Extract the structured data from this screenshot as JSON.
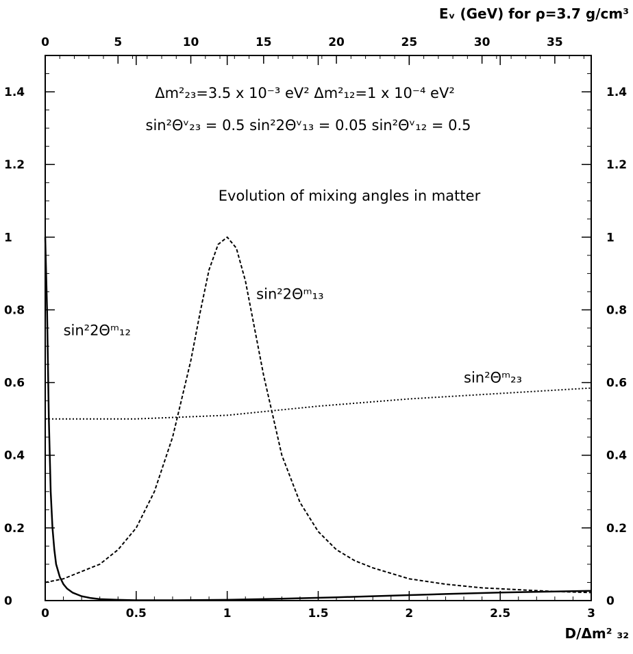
{
  "chart_data": {
    "type": "line",
    "title": "Evolution of mixing angles in matter",
    "parameters": {
      "line1": "Δm²₂₃=3.5 x 10⁻³ eV² Δm²₁₂=1 x 10⁻⁴ eV²",
      "line2": "sin²Θᵛ₂₃ = 0.5   sin²2Θᵛ₁₃ = 0.05  sin²Θᵛ₁₂ = 0.5"
    },
    "xlabel": "D/Δm² ₃₂",
    "top_xlabel": "Eᵥ (GeV) for ρ=3.7 g/cm³",
    "xlim": [
      0,
      3
    ],
    "ylim": [
      0,
      1.5
    ],
    "top_xlim": [
      0,
      37.5
    ],
    "x_ticks": [
      "0",
      "0.5",
      "1",
      "1.5",
      "2",
      "2.5",
      "3"
    ],
    "x_tick_values": [
      0,
      0.5,
      1,
      1.5,
      2,
      2.5,
      3
    ],
    "top_ticks": [
      "0",
      "5",
      "10",
      "15",
      "20",
      "25",
      "30",
      "35"
    ],
    "top_tick_values": [
      0,
      5,
      10,
      15,
      20,
      25,
      30,
      35
    ],
    "y_ticks": [
      "0",
      "0.2",
      "0.4",
      "0.6",
      "0.8",
      "1",
      "1.2",
      "1.4"
    ],
    "y_tick_values": [
      0,
      0.2,
      0.4,
      0.6,
      0.8,
      1,
      1.2,
      1.4
    ],
    "grid": false,
    "series": [
      {
        "name": "sin²2Θᵐ₁₂",
        "style": "solid",
        "color": "#000000",
        "x": [
          0,
          0.01,
          0.02,
          0.03,
          0.04,
          0.05,
          0.06,
          0.08,
          0.1,
          0.12,
          0.15,
          0.2,
          0.25,
          0.3,
          0.4,
          0.5,
          0.7,
          1.0,
          1.3,
          1.6,
          1.8,
          2.0,
          2.2,
          2.5,
          2.8,
          3.0
        ],
        "y": [
          1.0,
          0.8,
          0.5,
          0.3,
          0.2,
          0.14,
          0.1,
          0.065,
          0.045,
          0.033,
          0.022,
          0.012,
          0.007,
          0.004,
          0.002,
          0.001,
          0.001,
          0.002,
          0.005,
          0.009,
          0.012,
          0.015,
          0.018,
          0.022,
          0.025,
          0.027
        ]
      },
      {
        "name": "sin²2Θᵐ₁₃",
        "style": "dashed",
        "color": "#000000",
        "x": [
          0,
          0.1,
          0.2,
          0.3,
          0.4,
          0.5,
          0.6,
          0.7,
          0.8,
          0.85,
          0.9,
          0.95,
          1.0,
          1.05,
          1.1,
          1.15,
          1.2,
          1.3,
          1.4,
          1.5,
          1.6,
          1.7,
          1.8,
          2.0,
          2.2,
          2.4,
          2.6,
          2.8,
          3.0
        ],
        "y": [
          0.05,
          0.06,
          0.08,
          0.1,
          0.14,
          0.2,
          0.3,
          0.45,
          0.66,
          0.79,
          0.91,
          0.98,
          1.0,
          0.97,
          0.88,
          0.75,
          0.62,
          0.4,
          0.27,
          0.19,
          0.14,
          0.11,
          0.09,
          0.06,
          0.045,
          0.035,
          0.03,
          0.025,
          0.022
        ]
      },
      {
        "name": "sin²Θᵐ₂₃",
        "style": "dotted",
        "color": "#000000",
        "x": [
          0,
          0.5,
          1.0,
          1.5,
          2.0,
          2.5,
          3.0
        ],
        "y": [
          0.5,
          0.5,
          0.51,
          0.535,
          0.555,
          0.57,
          0.585
        ]
      }
    ],
    "series_labels": [
      {
        "text": "sin²2Θᵐ₁₂",
        "x": 0.1,
        "y": 0.73
      },
      {
        "text": "sin²2Θᵐ₁₃",
        "x": 1.16,
        "y": 0.83
      },
      {
        "text": "sin²Θᵐ₂₃",
        "x": 2.3,
        "y": 0.6
      }
    ]
  }
}
